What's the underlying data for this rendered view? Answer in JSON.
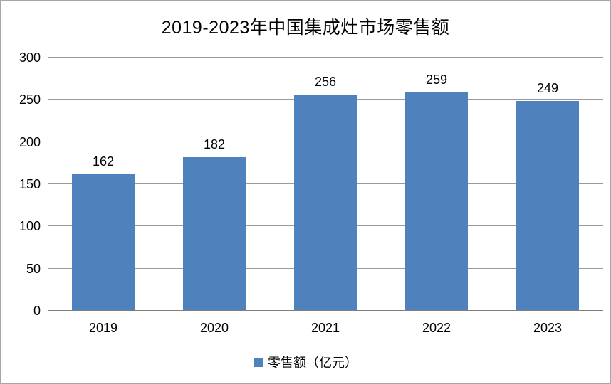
{
  "chart_data": {
    "type": "bar",
    "title": "2019-2023年中国集成灶市场零售额",
    "categories": [
      "2019",
      "2020",
      "2021",
      "2022",
      "2023"
    ],
    "values": [
      162,
      182,
      256,
      259,
      249
    ],
    "legend": "零售额（亿元）",
    "xlabel": "",
    "ylabel": "",
    "ylim": [
      0,
      300
    ],
    "yticks": [
      0,
      50,
      100,
      150,
      200,
      250,
      300
    ],
    "ytick_labels": [
      "0",
      "50",
      "100",
      "150",
      "200",
      "250",
      "300"
    ],
    "grid": true,
    "legend_position": "bottom",
    "bar_color": "#4F81BD"
  },
  "colors": {
    "bar": "#4F81BD",
    "gridline": "#9a9a9a",
    "axis_line": "#7f7f7f",
    "frame_border": "#a6a6a6",
    "background": "#ffffff",
    "text": "#000000"
  }
}
